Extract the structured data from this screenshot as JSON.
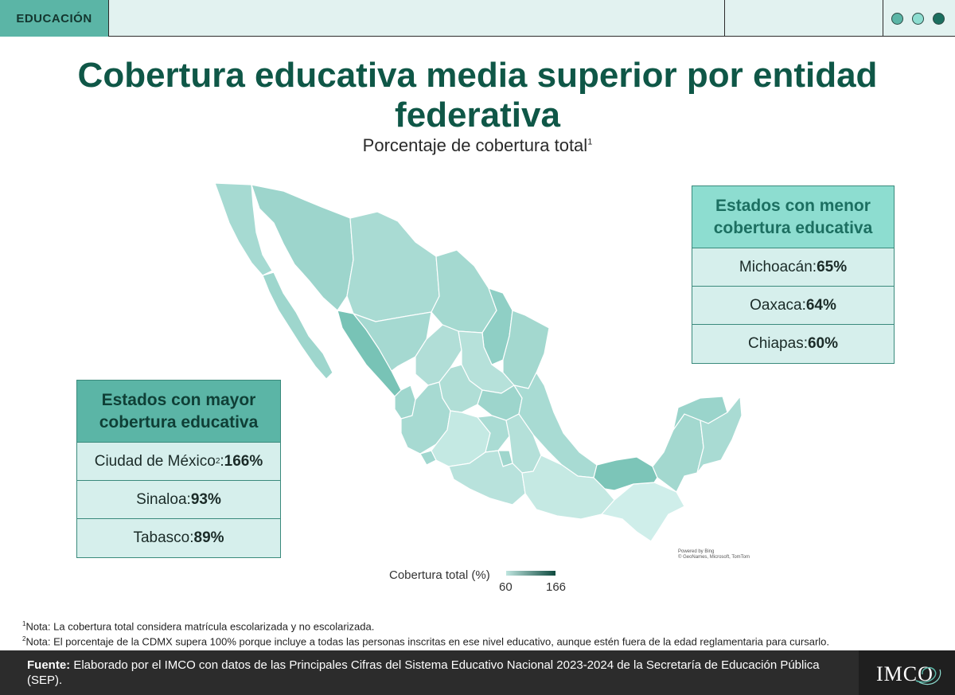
{
  "header": {
    "section_label": "EDUCACIÓN",
    "dots": [
      "#5bb5a6",
      "#8dddd0",
      "#1b6f5f"
    ]
  },
  "title": "Cobertura educativa media superior por entidad federativa",
  "subtitle": "Porcentaje de cobertura total",
  "subtitle_note": "1",
  "map_attribution": [
    "Powered by Bing",
    "© GeoNames, Microsoft, TomTom"
  ],
  "colors": {
    "accent_dark": "#0f5747",
    "header_high": "#5bb5a6",
    "header_low": "#8dddd0",
    "scale_low": "#bfe5df",
    "scale_high": "#0e4a3f"
  },
  "chart_data": {
    "type": "choropleth",
    "title": "Cobertura educativa media superior por entidad federativa",
    "subtitle": "Porcentaje de cobertura total",
    "legend": {
      "label": "Cobertura total (%)",
      "min": 60,
      "max": 166
    },
    "highlighted": [
      {
        "state": "Ciudad de México",
        "value": 166
      },
      {
        "state": "Sinaloa",
        "value": 93
      },
      {
        "state": "Tabasco",
        "value": 89
      },
      {
        "state": "Michoacán",
        "value": 65
      },
      {
        "state": "Oaxaca",
        "value": 64
      },
      {
        "state": "Chiapas",
        "value": 60
      }
    ]
  },
  "high_table": {
    "title": "Estados con mayor cobertura educativa",
    "title_lines": [
      "Estados con mayor",
      "cobertura educativa"
    ],
    "rows": [
      {
        "name": "Ciudad de México",
        "note": "2",
        "sep": ": ",
        "value": "166%"
      },
      {
        "name": "Sinaloa",
        "note": "",
        "sep": ": ",
        "value": "93%"
      },
      {
        "name": "Tabasco",
        "note": "",
        "sep": ": ",
        "value": "89%"
      }
    ]
  },
  "low_table": {
    "title": "Estados con menor cobertura educativa",
    "title_lines": [
      "Estados con menor",
      "cobertura educativa"
    ],
    "rows": [
      {
        "name": "Michoacán",
        "sep": ": ",
        "value": "65%"
      },
      {
        "name": "Oaxaca",
        "sep": ": ",
        "value": "64%"
      },
      {
        "name": "Chiapas",
        "sep": ": ",
        "value": "60%"
      }
    ]
  },
  "notes": [
    {
      "num": "1",
      "text": "Nota: La cobertura total considera matrícula escolarizada y no escolarizada."
    },
    {
      "num": "2",
      "text": "Nota: El porcentaje de la CDMX supera 100% porque incluye a todas las personas inscritas en ese nivel educativo, aunque estén fuera de la edad reglamentaria para cursarlo."
    }
  ],
  "footer": {
    "source_label": "Fuente:",
    "source_text": " Elaborado por el IMCO con datos de las Principales Cifras del Sistema Educativo Nacional 2023-2024 de la Secretaría de Educación Pública (SEP).",
    "logo_text": "IMCO"
  }
}
